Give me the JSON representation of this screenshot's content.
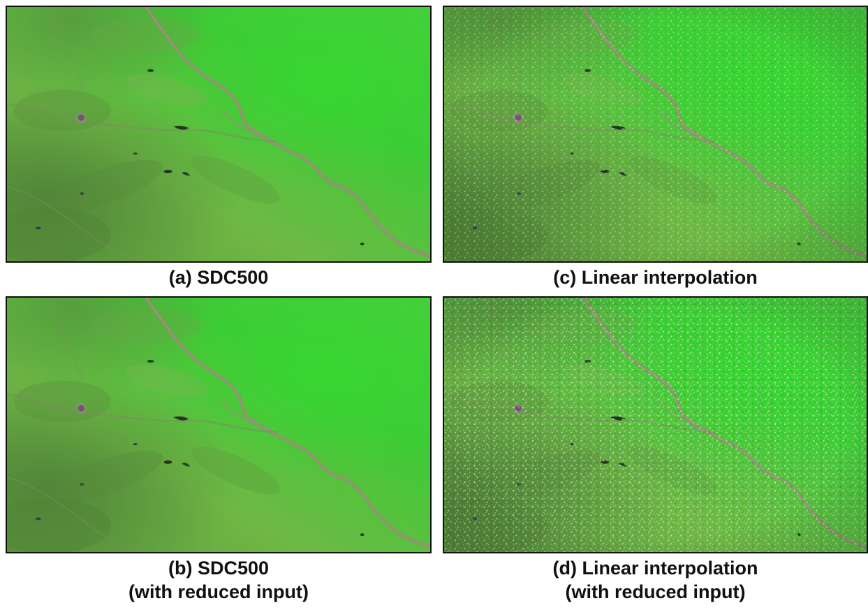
{
  "panels": [
    {
      "id": "a",
      "caption_line1": "(a) SDC500",
      "caption_line2": "",
      "style": "smooth"
    },
    {
      "id": "b",
      "caption_line1": "(b) SDC500",
      "caption_line2": "(with reduced input)",
      "style": "smooth"
    },
    {
      "id": "c",
      "caption_line1": "(c) Linear interpolation",
      "caption_line2": "",
      "style": "noisy"
    },
    {
      "id": "d",
      "caption_line1": "(d) Linear interpolation",
      "caption_line2": "(with reduced input)",
      "style": "noisy"
    }
  ],
  "colors": {
    "vegetation_bright": "#3fd435",
    "vegetation_mid": "#66bb44",
    "vegetation_dark": "#4f8f3a",
    "river": "#8a8a6a",
    "water_dark": "#2a3a2a",
    "urban": "#7a3a6a",
    "noise_speckle": "#d8ecd8",
    "border": "#111111"
  }
}
